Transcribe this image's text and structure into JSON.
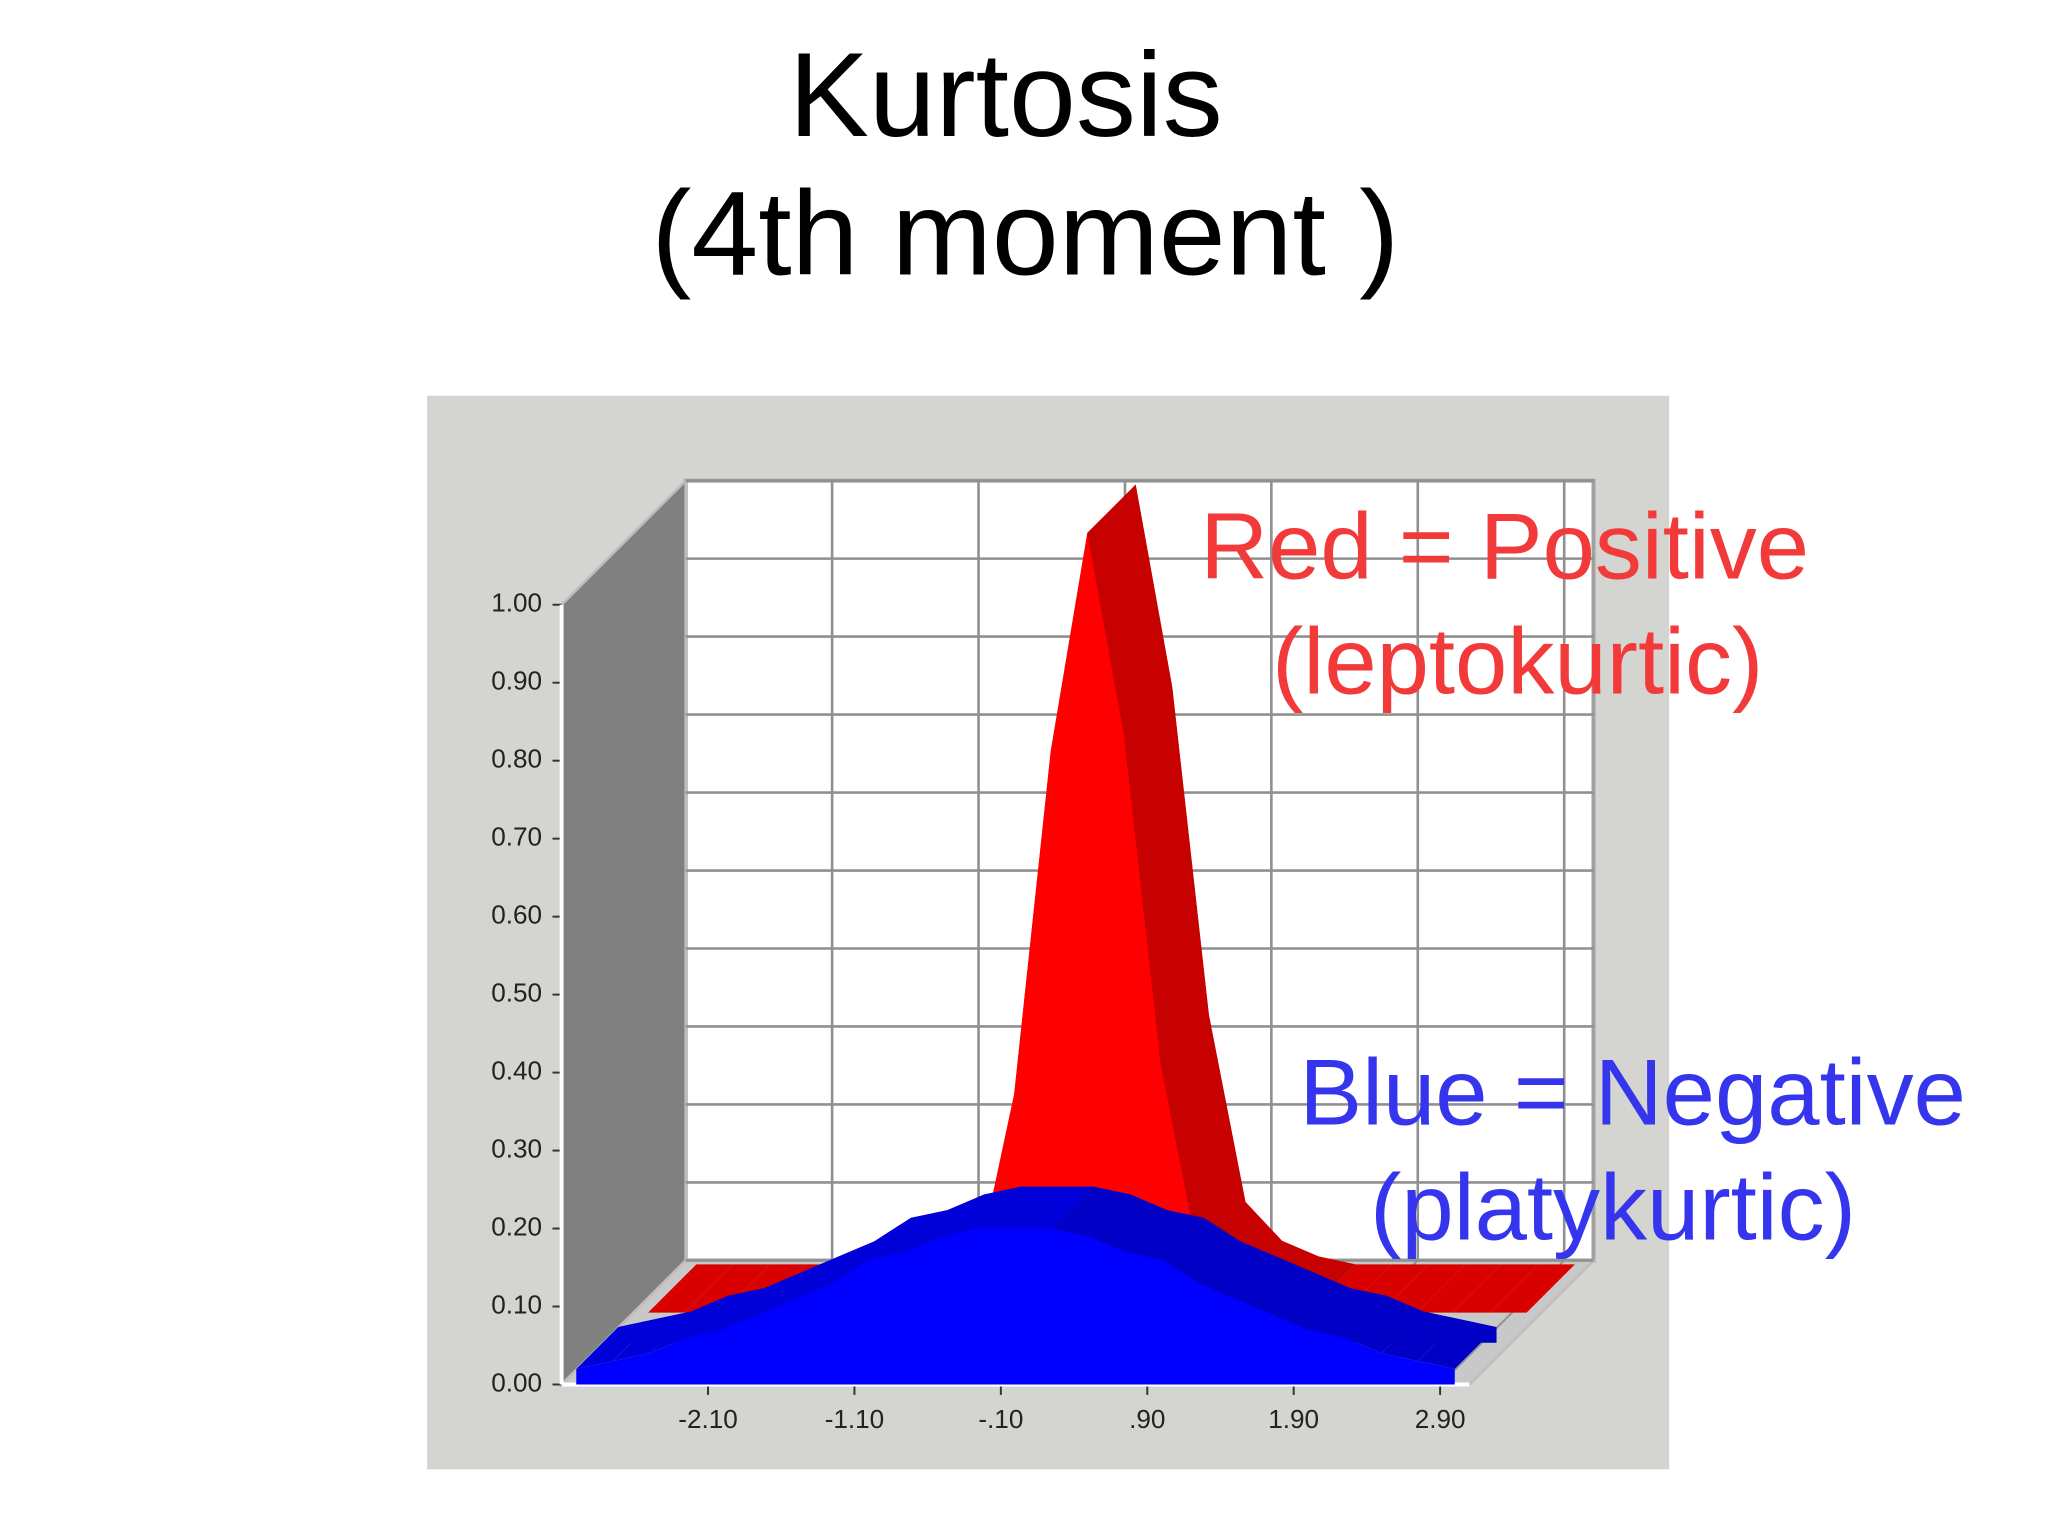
{
  "title": [
    "Kurtosis",
    "(4th moment )"
  ],
  "chart_data": {
    "type": "area3d",
    "x": [
      -3,
      -2.75,
      -2.5,
      -2.25,
      -2,
      -1.75,
      -1.5,
      -1.25,
      -1,
      -0.75,
      -0.5,
      -0.25,
      0,
      0.25,
      0.5,
      0.75,
      1,
      1.25,
      1.5,
      1.75,
      2,
      2.25,
      2.5,
      2.75,
      3
    ],
    "series": [
      {
        "name": "Red",
        "color": "#ff0000",
        "values": [
          0,
          0,
          0,
          0,
          0,
          0,
          0,
          0,
          0.02,
          0.06,
          0.28,
          0.72,
          1.0,
          0.74,
          0.32,
          0.08,
          0.03,
          0.01,
          0,
          0,
          0,
          0,
          0,
          0,
          0
        ]
      },
      {
        "name": "Blue",
        "color": "#0000ff",
        "values": [
          0.02,
          0.03,
          0.04,
          0.06,
          0.07,
          0.09,
          0.11,
          0.13,
          0.16,
          0.17,
          0.19,
          0.2,
          0.2,
          0.2,
          0.19,
          0.17,
          0.16,
          0.13,
          0.11,
          0.09,
          0.07,
          0.06,
          0.04,
          0.03,
          0.02
        ]
      }
    ],
    "xlim": [
      -3.1,
      3.1
    ],
    "xticks": [
      {
        "value": -2.1,
        "label": "-2.10"
      },
      {
        "value": -1.1,
        "label": "-1.10"
      },
      {
        "value": -0.1,
        "label": "-.10"
      },
      {
        "value": 0.9,
        "label": ".90"
      },
      {
        "value": 1.9,
        "label": "1.90"
      },
      {
        "value": 2.9,
        "label": "2.90"
      }
    ],
    "ylim": [
      0,
      1
    ],
    "yticks": [
      {
        "value": 0,
        "label": "0.00"
      },
      {
        "value": 0.1,
        "label": "0.10"
      },
      {
        "value": 0.2,
        "label": "0.20"
      },
      {
        "value": 0.3,
        "label": "0.30"
      },
      {
        "value": 0.4,
        "label": "0.40"
      },
      {
        "value": 0.5,
        "label": "0.50"
      },
      {
        "value": 0.6,
        "label": "0.60"
      },
      {
        "value": 0.7,
        "label": "0.70"
      },
      {
        "value": 0.8,
        "label": "0.80"
      },
      {
        "value": 0.9,
        "label": "0.90"
      },
      {
        "value": 1,
        "label": "1.00"
      }
    ],
    "grid": true,
    "annotations": [
      {
        "text": "Red = Positive",
        "color": "#f23a3a"
      },
      {
        "text": "(leptokurtic)",
        "color": "#f23a3a"
      },
      {
        "text": "Blue = Negative",
        "color": "#3535ee"
      },
      {
        "text": "(platykurtic)",
        "color": "#3535ee"
      }
    ]
  }
}
